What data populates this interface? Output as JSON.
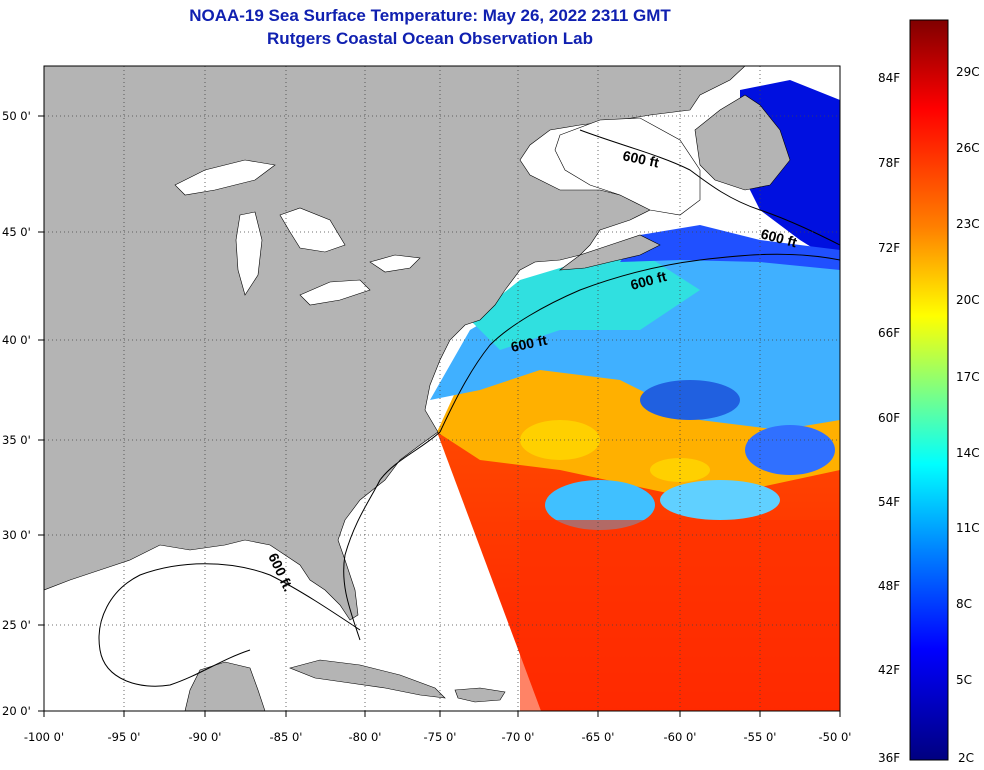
{
  "header": {
    "title_line1": "NOAA-19 Sea Surface Temperature:  May 26, 2022 2311 GMT",
    "title_line2": "Rutgers Coastal Ocean Observation Lab"
  },
  "map": {
    "lon_ticks": [
      "-100 0'",
      "-95 0'",
      "-90 0'",
      "-85 0'",
      "-80 0'",
      "-75 0'",
      "-70 0'",
      "-65 0'",
      "-60 0'",
      "-55 0'",
      "-50 0'"
    ],
    "lat_ticks": [
      "50 0'",
      "45 0'",
      "40 0'",
      "35 0'",
      "30 0'",
      "25 0'",
      "20 0'"
    ],
    "contour_labels": [
      "600 ft",
      "600 ft",
      "600 ft",
      "600 ft",
      "600 ft."
    ],
    "land_color": "#b4b4b4",
    "nodata_color": "#ffffff"
  },
  "colorbar": {
    "f_labels": [
      "84F",
      "78F",
      "72F",
      "66F",
      "60F",
      "54F",
      "48F",
      "42F",
      "36F"
    ],
    "c_labels": [
      "29C",
      "26C",
      "23C",
      "20C",
      "17C",
      "14C",
      "11C",
      "8C",
      "5C",
      "2C"
    ],
    "colors_top_to_bottom": [
      "#800000",
      "#ff0000",
      "#ff8000",
      "#ffff00",
      "#80ff80",
      "#00ffff",
      "#0080ff",
      "#0000ff",
      "#000080"
    ]
  }
}
